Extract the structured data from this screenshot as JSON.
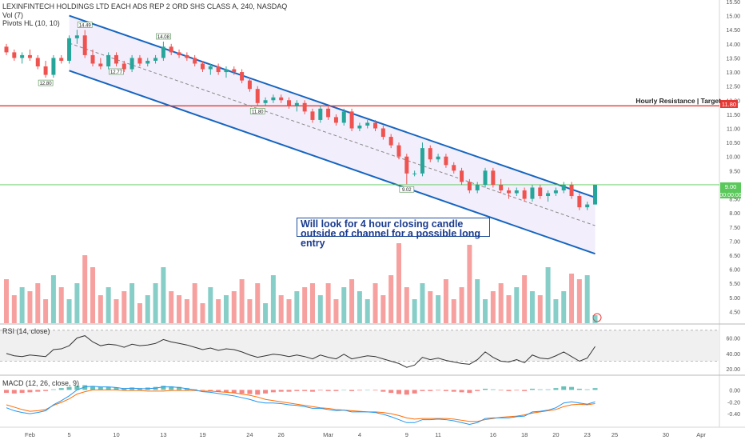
{
  "header": {
    "title": "LEXINFINTECH HOLDINGS LTD EACH ADS REP 2 ORD SHS CLASS A, 240, NASDAQ",
    "vol_label": "Vol (7)",
    "pivots_label": "Pivots HL (10, 10)"
  },
  "annotations": {
    "note": "Will look for 4 hour closing candle outside of channel for a possible long entry",
    "resistance_label": "Hourly Resistance | Target",
    "resistance_price": "11.80",
    "current_price_a": "9.00",
    "current_price_b": "00:00:00",
    "pivot_labels": [
      "12.80",
      "14.49",
      "12.77",
      "14.08",
      "11.80",
      "9.02"
    ]
  },
  "colors": {
    "up": "#26a69a",
    "down": "#ef5350",
    "channel": "#1565c0",
    "channel_fill": "#f3eefb",
    "resistance": "#e53935",
    "price_line": "#5ac85a",
    "rsi_line": "#333333",
    "macd_line": "#2196f3",
    "signal_line": "#ff6d00"
  },
  "chart_data": [
    {
      "type": "candlestick",
      "title": "LEXINFINTECH HOLDINGS LTD EACH ADS REP 2 ORD SHS CLASS A, 240, NASDAQ",
      "ylim": [
        4.2,
        15.5
      ],
      "y_ticks": [
        "15.50",
        "15.00",
        "14.50",
        "14.00",
        "13.50",
        "13.00",
        "12.50",
        "12.00",
        "11.50",
        "11.00",
        "10.50",
        "10.00",
        "9.50",
        "9.00",
        "8.50",
        "8.00",
        "7.50",
        "7.00",
        "6.50",
        "6.00",
        "5.50",
        "5.00",
        "4.50"
      ],
      "x_ticks": [
        "Feb",
        "5",
        "10",
        "13",
        "19",
        "24",
        "26",
        "Mar",
        "4",
        "9",
        "11",
        "16",
        "18",
        "20",
        "23",
        "25",
        "30",
        "Apr"
      ],
      "ohlc": [
        [
          13.9,
          14.0,
          13.6,
          13.7
        ],
        [
          13.7,
          13.8,
          13.4,
          13.5
        ],
        [
          13.5,
          13.7,
          13.3,
          13.6
        ],
        [
          13.6,
          13.8,
          13.4,
          13.5
        ],
        [
          13.5,
          13.6,
          13.1,
          13.2
        ],
        [
          13.2,
          13.4,
          12.8,
          12.9
        ],
        [
          12.9,
          13.6,
          12.8,
          13.5
        ],
        [
          13.5,
          13.6,
          13.3,
          13.4
        ],
        [
          13.4,
          14.3,
          13.3,
          14.2
        ],
        [
          14.2,
          14.5,
          14.0,
          14.3
        ],
        [
          14.3,
          14.49,
          13.5,
          13.6
        ],
        [
          13.6,
          13.8,
          13.2,
          13.3
        ],
        [
          13.3,
          13.5,
          13.1,
          13.2
        ],
        [
          13.2,
          13.7,
          13.1,
          13.6
        ],
        [
          13.6,
          13.7,
          13.2,
          13.3
        ],
        [
          13.3,
          13.4,
          13.0,
          13.1
        ],
        [
          13.1,
          13.6,
          13.0,
          13.5
        ],
        [
          13.5,
          13.6,
          13.2,
          13.3
        ],
        [
          13.3,
          13.5,
          13.2,
          13.4
        ],
        [
          13.4,
          13.6,
          13.3,
          13.5
        ],
        [
          13.5,
          14.08,
          13.4,
          13.9
        ],
        [
          13.9,
          14.0,
          13.6,
          13.7
        ],
        [
          13.7,
          13.8,
          13.5,
          13.6
        ],
        [
          13.6,
          13.7,
          13.4,
          13.5
        ],
        [
          13.5,
          13.6,
          13.2,
          13.3
        ],
        [
          13.3,
          13.4,
          13.0,
          13.1
        ],
        [
          13.1,
          13.3,
          12.9,
          13.2
        ],
        [
          13.2,
          13.3,
          12.9,
          13.0
        ],
        [
          13.0,
          13.2,
          12.8,
          13.1
        ],
        [
          13.1,
          13.2,
          12.9,
          13.0
        ],
        [
          13.0,
          13.1,
          12.6,
          12.7
        ],
        [
          12.7,
          12.8,
          12.3,
          12.4
        ],
        [
          12.4,
          12.5,
          11.8,
          11.9
        ],
        [
          11.9,
          12.1,
          11.8,
          12.0
        ],
        [
          12.0,
          12.2,
          11.9,
          12.1
        ],
        [
          12.1,
          12.2,
          11.9,
          12.0
        ],
        [
          12.0,
          12.1,
          11.7,
          11.8
        ],
        [
          11.8,
          12.0,
          11.6,
          11.9
        ],
        [
          11.9,
          12.0,
          11.5,
          11.6
        ],
        [
          11.6,
          11.7,
          11.2,
          11.3
        ],
        [
          11.3,
          11.8,
          11.2,
          11.7
        ],
        [
          11.7,
          11.8,
          11.3,
          11.4
        ],
        [
          11.4,
          11.5,
          11.1,
          11.2
        ],
        [
          11.2,
          11.7,
          11.1,
          11.6
        ],
        [
          11.6,
          11.7,
          10.9,
          11.0
        ],
        [
          11.0,
          11.2,
          10.9,
          11.1
        ],
        [
          11.1,
          11.3,
          11.0,
          11.2
        ],
        [
          11.2,
          11.3,
          10.9,
          11.0
        ],
        [
          11.0,
          11.1,
          10.6,
          10.7
        ],
        [
          10.7,
          10.8,
          10.3,
          10.4
        ],
        [
          10.4,
          10.5,
          9.9,
          10.0
        ],
        [
          10.0,
          10.1,
          9.02,
          9.4
        ],
        [
          9.4,
          9.5,
          9.3,
          9.4
        ],
        [
          9.4,
          10.5,
          9.3,
          10.3
        ],
        [
          10.3,
          10.4,
          9.8,
          9.9
        ],
        [
          9.9,
          10.1,
          9.8,
          10.0
        ],
        [
          10.0,
          10.1,
          9.6,
          9.7
        ],
        [
          9.7,
          9.8,
          9.4,
          9.5
        ],
        [
          9.5,
          9.6,
          9.0,
          9.1
        ],
        [
          9.1,
          9.2,
          8.7,
          8.8
        ],
        [
          8.8,
          9.1,
          8.7,
          9.0
        ],
        [
          9.0,
          9.6,
          8.9,
          9.5
        ],
        [
          9.5,
          9.6,
          8.9,
          9.0
        ],
        [
          9.0,
          9.2,
          8.7,
          8.8
        ],
        [
          8.8,
          8.9,
          8.5,
          8.7
        ],
        [
          8.7,
          8.9,
          8.6,
          8.8
        ],
        [
          8.8,
          8.9,
          8.4,
          8.5
        ],
        [
          8.5,
          9.0,
          8.4,
          8.9
        ],
        [
          8.9,
          9.0,
          8.5,
          8.6
        ],
        [
          8.6,
          8.8,
          8.4,
          8.7
        ],
        [
          8.7,
          8.9,
          8.6,
          8.8
        ],
        [
          8.8,
          9.1,
          8.7,
          9.0
        ],
        [
          9.0,
          9.1,
          8.5,
          8.6
        ],
        [
          8.6,
          8.7,
          8.1,
          8.2
        ],
        [
          8.2,
          8.4,
          8.1,
          8.3
        ],
        [
          8.3,
          9.0,
          8.3,
          9.0
        ]
      ],
      "volume_relative": [
        0.55,
        0.35,
        0.45,
        0.4,
        0.5,
        0.3,
        0.6,
        0.45,
        0.3,
        0.5,
        0.85,
        0.7,
        0.35,
        0.45,
        0.3,
        0.4,
        0.5,
        0.25,
        0.35,
        0.5,
        0.7,
        0.4,
        0.35,
        0.3,
        0.5,
        0.25,
        0.45,
        0.3,
        0.35,
        0.4,
        0.55,
        0.3,
        0.5,
        0.25,
        0.6,
        0.35,
        0.3,
        0.4,
        0.45,
        0.5,
        0.35,
        0.5,
        0.3,
        0.45,
        0.55,
        0.4,
        0.3,
        0.5,
        0.35,
        0.6,
        1.0,
        0.45,
        0.3,
        0.5,
        0.4,
        0.35,
        0.55,
        0.3,
        0.45,
        0.98,
        0.55,
        0.3,
        0.4,
        0.5,
        0.35,
        0.45,
        0.6,
        0.4,
        0.35,
        0.7,
        0.3,
        0.4,
        0.62,
        0.55,
        0.6,
        0.1
      ],
      "channel_upper": [
        [
          8,
          15.0
        ],
        [
          75,
          8.55
        ]
      ],
      "channel_lower": [
        [
          8,
          13.05
        ],
        [
          75,
          6.55
        ]
      ],
      "resistance": 11.8,
      "current_price": 9.0
    },
    {
      "type": "line",
      "title": "RSI (14, close)",
      "ylim": [
        15,
        75
      ],
      "y_ticks": [
        "60.00",
        "40.00",
        "20.00"
      ],
      "band": [
        30,
        70
      ],
      "values": [
        40,
        37,
        36,
        38,
        37,
        36,
        45,
        46,
        50,
        60,
        63,
        55,
        50,
        52,
        51,
        48,
        52,
        50,
        51,
        53,
        58,
        55,
        53,
        51,
        48,
        45,
        47,
        44,
        46,
        45,
        42,
        38,
        35,
        37,
        39,
        38,
        36,
        38,
        36,
        33,
        38,
        35,
        33,
        39,
        33,
        35,
        37,
        36,
        33,
        30,
        27,
        22,
        25,
        35,
        32,
        34,
        31,
        29,
        27,
        26,
        32,
        42,
        35,
        30,
        29,
        32,
        28,
        38,
        34,
        33,
        37,
        42,
        36,
        30,
        34,
        49
      ]
    },
    {
      "type": "bar+line",
      "title": "MACD (12, 26, close, 9)",
      "ylim": [
        -0.6,
        0.18
      ],
      "y_ticks": [
        "0.00",
        "-0.20",
        "-0.40"
      ],
      "histogram": [
        -0.05,
        -0.06,
        -0.05,
        -0.04,
        -0.03,
        -0.02,
        0.01,
        0.03,
        0.05,
        0.07,
        0.08,
        0.06,
        0.05,
        0.05,
        0.04,
        0.03,
        0.04,
        0.03,
        0.04,
        0.05,
        0.07,
        0.06,
        0.05,
        0.03,
        0.01,
        -0.01,
        -0.02,
        -0.03,
        -0.04,
        -0.05,
        -0.06,
        -0.07,
        -0.08,
        -0.06,
        -0.04,
        -0.03,
        -0.03,
        -0.02,
        -0.02,
        -0.03,
        -0.01,
        -0.02,
        -0.02,
        0.0,
        -0.02,
        -0.01,
        0.0,
        -0.01,
        -0.03,
        -0.05,
        -0.07,
        -0.08,
        -0.06,
        -0.02,
        -0.02,
        -0.01,
        -0.02,
        -0.03,
        -0.04,
        -0.05,
        -0.02,
        0.02,
        0.01,
        -0.01,
        -0.02,
        -0.01,
        -0.02,
        0.02,
        0.01,
        0.01,
        0.03,
        0.06,
        0.05,
        0.02,
        0.01,
        0.03
      ],
      "macd": [
        -0.3,
        -0.35,
        -0.38,
        -0.4,
        -0.38,
        -0.35,
        -0.25,
        -0.18,
        -0.1,
        0.0,
        0.05,
        0.06,
        0.05,
        0.05,
        0.04,
        0.02,
        0.03,
        0.02,
        0.02,
        0.03,
        0.05,
        0.05,
        0.04,
        0.02,
        0.0,
        -0.03,
        -0.04,
        -0.06,
        -0.08,
        -0.1,
        -0.13,
        -0.16,
        -0.2,
        -0.22,
        -0.22,
        -0.23,
        -0.25,
        -0.26,
        -0.28,
        -0.31,
        -0.31,
        -0.33,
        -0.35,
        -0.34,
        -0.37,
        -0.37,
        -0.37,
        -0.38,
        -0.41,
        -0.45,
        -0.5,
        -0.55,
        -0.55,
        -0.5,
        -0.5,
        -0.49,
        -0.5,
        -0.52,
        -0.55,
        -0.58,
        -0.55,
        -0.48,
        -0.47,
        -0.47,
        -0.47,
        -0.45,
        -0.44,
        -0.37,
        -0.36,
        -0.34,
        -0.3,
        -0.22,
        -0.2,
        -0.22,
        -0.24,
        -0.2
      ],
      "signal": [
        -0.25,
        -0.29,
        -0.33,
        -0.36,
        -0.35,
        -0.33,
        -0.26,
        -0.21,
        -0.15,
        -0.07,
        -0.03,
        0.0,
        0.0,
        0.0,
        0.0,
        -0.01,
        -0.01,
        -0.01,
        -0.02,
        -0.02,
        -0.02,
        -0.01,
        -0.01,
        -0.01,
        -0.01,
        -0.02,
        -0.02,
        -0.03,
        -0.04,
        -0.05,
        -0.07,
        -0.09,
        -0.12,
        -0.16,
        -0.18,
        -0.2,
        -0.22,
        -0.24,
        -0.26,
        -0.28,
        -0.3,
        -0.31,
        -0.33,
        -0.34,
        -0.35,
        -0.36,
        -0.37,
        -0.37,
        -0.38,
        -0.4,
        -0.43,
        -0.47,
        -0.49,
        -0.48,
        -0.48,
        -0.48,
        -0.48,
        -0.49,
        -0.51,
        -0.53,
        -0.53,
        -0.5,
        -0.48,
        -0.46,
        -0.45,
        -0.44,
        -0.42,
        -0.39,
        -0.37,
        -0.35,
        -0.33,
        -0.28,
        -0.25,
        -0.24,
        -0.25,
        -0.23
      ]
    }
  ]
}
